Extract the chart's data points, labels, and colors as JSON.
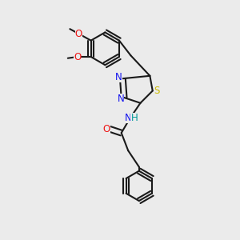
{
  "bg": "#ebebeb",
  "bond_color": "#1a1a1a",
  "bond_lw": 1.5,
  "dbo": 0.04,
  "colors": {
    "N": "#1414ee",
    "O": "#ee1414",
    "S": "#ccbb00",
    "NH": "#009999"
  },
  "fs": 8.5,
  "fs_small": 7.5,
  "xlim": [
    -0.3,
    1.3
  ],
  "ylim": [
    -1.9,
    1.6
  ]
}
